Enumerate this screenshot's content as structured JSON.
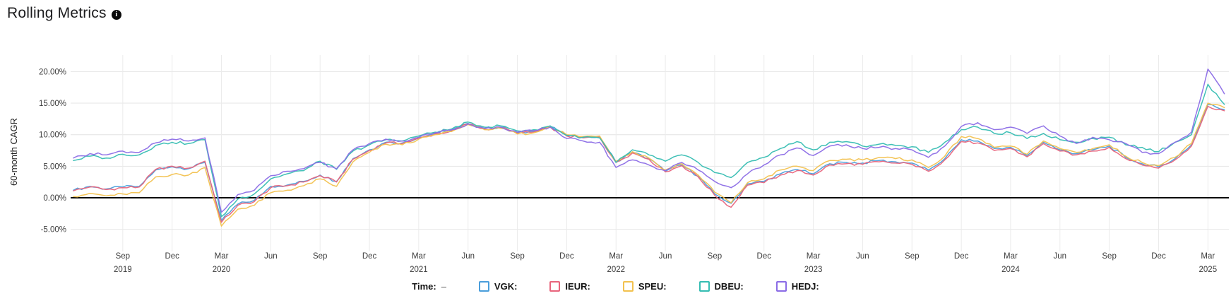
{
  "title": "Rolling Metrics",
  "info_icon": "info-icon",
  "legend": {
    "time_label": "Time:",
    "time_value": "–"
  },
  "chart_data": {
    "type": "line",
    "title": "Rolling Metrics",
    "xlabel": "",
    "ylabel": "60-month CAGR",
    "grid": true,
    "legend_position": "bottom",
    "ylim": [
      -8.5,
      22.5
    ],
    "x_start": "2019-06",
    "x_end": "2025-04",
    "x_unit": "month",
    "y_ticks": [
      {
        "label": "20.00%",
        "value": 20
      },
      {
        "label": "15.00%",
        "value": 15
      },
      {
        "label": "10.00%",
        "value": 10
      },
      {
        "label": "5.00%",
        "value": 5
      },
      {
        "label": "0.00%",
        "value": 0
      },
      {
        "label": "-5.00%",
        "value": -5
      }
    ],
    "zero_line": {
      "value": 0,
      "color": "#000000"
    },
    "x_ticks": [
      {
        "i": 3,
        "label": "Sep",
        "year": "2019"
      },
      {
        "i": 6,
        "label": "Dec"
      },
      {
        "i": 9,
        "label": "Mar",
        "year": "2020"
      },
      {
        "i": 12,
        "label": "Jun"
      },
      {
        "i": 15,
        "label": "Sep"
      },
      {
        "i": 18,
        "label": "Dec"
      },
      {
        "i": 21,
        "label": "Mar",
        "year": "2021"
      },
      {
        "i": 24,
        "label": "Jun"
      },
      {
        "i": 27,
        "label": "Sep"
      },
      {
        "i": 30,
        "label": "Dec"
      },
      {
        "i": 33,
        "label": "Mar",
        "year": "2022"
      },
      {
        "i": 36,
        "label": "Jun"
      },
      {
        "i": 39,
        "label": "Sep"
      },
      {
        "i": 42,
        "label": "Dec"
      },
      {
        "i": 45,
        "label": "Mar",
        "year": "2023"
      },
      {
        "i": 48,
        "label": "Jun"
      },
      {
        "i": 51,
        "label": "Sep"
      },
      {
        "i": 54,
        "label": "Dec"
      },
      {
        "i": 57,
        "label": "Mar",
        "year": "2024"
      },
      {
        "i": 60,
        "label": "Jun"
      },
      {
        "i": 63,
        "label": "Sep"
      },
      {
        "i": 66,
        "label": "Dec"
      },
      {
        "i": 69,
        "label": "Mar",
        "year": "2025"
      }
    ],
    "series": [
      {
        "name": "VGK",
        "label": "VGK:",
        "color": "#4a9edb",
        "values": [
          1.2,
          1.8,
          1.4,
          1.7,
          1.8,
          4.4,
          4.9,
          4.6,
          5.6,
          -3.6,
          -1.0,
          -0.4,
          1.8,
          2.0,
          2.6,
          3.6,
          2.6,
          6.2,
          7.6,
          8.8,
          8.7,
          9.5,
          10.2,
          10.7,
          11.8,
          11.0,
          11.2,
          10.3,
          10.5,
          11.3,
          9.9,
          9.6,
          9.7,
          5.7,
          7.2,
          6.2,
          4.2,
          5.2,
          3.4,
          0.6,
          -0.9,
          2.2,
          2.6,
          3.8,
          4.5,
          3.8,
          5.4,
          5.6,
          5.5,
          5.9,
          5.7,
          5.5,
          4.4,
          6.2,
          9.2,
          9.0,
          7.8,
          8.0,
          6.7,
          8.8,
          7.6,
          7.0,
          7.6,
          8.2,
          6.4,
          5.4,
          4.9,
          6.2,
          8.4,
          14.8,
          14.0
        ]
      },
      {
        "name": "IEUR",
        "label": "IEUR:",
        "color": "#e8647c",
        "values": [
          1.1,
          1.7,
          1.3,
          1.6,
          1.7,
          4.5,
          5.0,
          4.7,
          5.8,
          -3.9,
          -1.2,
          -0.6,
          1.6,
          1.9,
          2.5,
          3.5,
          2.5,
          6.1,
          7.5,
          8.7,
          8.6,
          9.4,
          10.1,
          10.6,
          11.7,
          10.9,
          11.1,
          10.2,
          10.4,
          11.2,
          9.8,
          9.5,
          9.6,
          5.6,
          7.1,
          6.1,
          4.1,
          5.1,
          3.3,
          0.4,
          -1.5,
          2.0,
          2.4,
          3.6,
          4.3,
          3.6,
          5.2,
          5.4,
          5.3,
          5.7,
          5.5,
          5.3,
          4.2,
          6.0,
          8.9,
          8.7,
          7.5,
          7.8,
          6.5,
          8.6,
          7.4,
          6.8,
          7.4,
          8.0,
          6.2,
          5.2,
          4.7,
          6.0,
          8.2,
          14.5,
          13.8
        ]
      },
      {
        "name": "SPEU",
        "label": "SPEU:",
        "color": "#f2c14e",
        "values": [
          0.2,
          0.7,
          0.3,
          0.6,
          0.8,
          3.3,
          3.7,
          3.6,
          4.8,
          -4.5,
          -1.8,
          -1.2,
          0.8,
          1.2,
          1.9,
          3.0,
          1.8,
          5.7,
          7.2,
          8.5,
          8.4,
          9.3,
          10.0,
          10.5,
          11.6,
          10.8,
          11.0,
          10.1,
          10.3,
          11.3,
          10.0,
          9.7,
          9.8,
          5.8,
          7.3,
          6.3,
          4.4,
          5.4,
          3.6,
          0.9,
          -0.8,
          2.4,
          3.0,
          4.4,
          5.0,
          4.3,
          5.9,
          6.1,
          6.0,
          6.4,
          6.2,
          6.0,
          4.8,
          6.6,
          9.7,
          9.4,
          8.0,
          8.2,
          6.9,
          9.0,
          7.8,
          7.2,
          7.8,
          8.4,
          6.6,
          5.6,
          5.1,
          6.4,
          8.6,
          15.0,
          14.3
        ]
      },
      {
        "name": "DBEU",
        "label": "DBEU:",
        "color": "#35bdb2",
        "values": [
          5.9,
          6.6,
          6.3,
          6.9,
          6.8,
          8.3,
          8.8,
          8.6,
          9.2,
          -3.0,
          -0.2,
          0.6,
          3.0,
          3.8,
          4.3,
          5.8,
          4.5,
          7.4,
          8.4,
          9.2,
          9.0,
          9.8,
          10.4,
          10.9,
          12.0,
          11.2,
          11.4,
          10.6,
          10.8,
          11.4,
          9.9,
          9.6,
          9.5,
          5.6,
          7.6,
          6.8,
          5.8,
          6.8,
          5.6,
          4.0,
          3.2,
          5.6,
          6.4,
          7.8,
          8.9,
          7.6,
          8.8,
          8.9,
          8.2,
          8.5,
          8.3,
          8.1,
          7.2,
          8.8,
          10.8,
          11.2,
          10.2,
          10.3,
          9.4,
          10.2,
          9.2,
          8.8,
          9.4,
          9.6,
          8.4,
          8.0,
          7.3,
          8.8,
          10.0,
          18.0,
          14.8
        ]
      },
      {
        "name": "HEDJ",
        "label": "HEDJ:",
        "color": "#8b6ce6",
        "values": [
          6.3,
          7.0,
          6.8,
          7.4,
          7.2,
          8.7,
          9.3,
          9.0,
          9.5,
          -2.3,
          0.5,
          1.2,
          3.5,
          4.2,
          4.6,
          5.6,
          4.6,
          7.6,
          8.6,
          9.3,
          9.0,
          9.6,
          10.3,
          10.8,
          11.7,
          11.0,
          11.2,
          10.4,
          10.6,
          11.2,
          9.4,
          9.0,
          8.8,
          4.8,
          6.0,
          5.2,
          4.3,
          5.6,
          4.4,
          2.6,
          1.6,
          3.8,
          5.2,
          6.8,
          7.9,
          6.7,
          8.2,
          8.4,
          7.8,
          8.0,
          7.8,
          7.6,
          6.4,
          8.2,
          11.3,
          11.9,
          10.8,
          11.2,
          10.2,
          11.4,
          9.8,
          8.6,
          9.6,
          9.2,
          8.6,
          7.2,
          7.0,
          8.8,
          10.4,
          20.4,
          16.5
        ]
      }
    ]
  }
}
